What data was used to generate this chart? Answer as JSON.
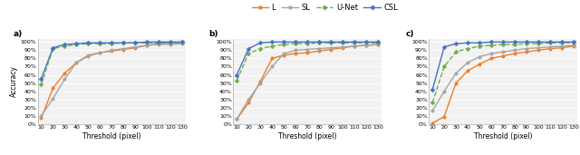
{
  "thresholds": [
    10,
    20,
    30,
    40,
    50,
    60,
    70,
    80,
    90,
    100,
    110,
    120,
    130
  ],
  "panels": [
    {
      "label": "a)",
      "L": [
        0.07,
        0.44,
        0.62,
        0.75,
        0.83,
        0.87,
        0.89,
        0.91,
        0.93,
        0.96,
        0.98,
        0.99,
        1.0
      ],
      "SL": [
        0.1,
        0.31,
        0.55,
        0.75,
        0.84,
        0.87,
        0.9,
        0.92,
        0.94,
        0.96,
        0.97,
        0.97,
        0.98
      ],
      "UNet": [
        0.48,
        0.92,
        0.95,
        0.97,
        0.98,
        0.98,
        0.98,
        0.99,
        0.99,
        0.99,
        0.99,
        0.99,
        0.99
      ],
      "CSL": [
        0.55,
        0.93,
        0.97,
        0.98,
        0.99,
        0.99,
        0.99,
        0.99,
        0.99,
        1.0,
        1.0,
        1.0,
        1.0
      ]
    },
    {
      "label": "b)",
      "L": [
        0.06,
        0.26,
        0.52,
        0.8,
        0.84,
        0.86,
        0.87,
        0.89,
        0.91,
        0.93,
        0.95,
        0.96,
        0.97
      ],
      "SL": [
        0.06,
        0.3,
        0.5,
        0.7,
        0.86,
        0.9,
        0.91,
        0.92,
        0.93,
        0.94,
        0.95,
        0.96,
        0.97
      ],
      "UNet": [
        0.53,
        0.86,
        0.92,
        0.95,
        0.97,
        0.98,
        0.98,
        0.99,
        0.99,
        0.99,
        0.99,
        0.99,
        0.99
      ],
      "CSL": [
        0.6,
        0.92,
        0.99,
        1.0,
        1.0,
        1.0,
        1.0,
        1.0,
        1.0,
        1.0,
        1.0,
        1.0,
        1.0
      ]
    },
    {
      "label": "c)",
      "L": [
        0.01,
        0.09,
        0.5,
        0.65,
        0.73,
        0.8,
        0.83,
        0.86,
        0.88,
        0.9,
        0.92,
        0.93,
        0.95
      ],
      "SL": [
        0.16,
        0.4,
        0.62,
        0.75,
        0.82,
        0.86,
        0.88,
        0.9,
        0.92,
        0.93,
        0.94,
        0.95,
        0.96
      ],
      "UNet": [
        0.26,
        0.7,
        0.88,
        0.92,
        0.95,
        0.96,
        0.97,
        0.97,
        0.98,
        0.98,
        0.99,
        0.99,
        0.99
      ],
      "CSL": [
        0.42,
        0.94,
        0.98,
        0.99,
        0.99,
        1.0,
        1.0,
        1.0,
        1.0,
        1.0,
        1.0,
        1.0,
        1.0
      ]
    }
  ],
  "colors": {
    "L": "#f47b20",
    "SL": "#a5a5a5",
    "UNet": "#70ad47",
    "CSL": "#4472c4"
  },
  "legend_labels": [
    "L",
    "SL",
    "U-Net",
    "CSL"
  ],
  "yticks": [
    0.0,
    0.1,
    0.2,
    0.3,
    0.4,
    0.5,
    0.6,
    0.7,
    0.8,
    0.9,
    1.0
  ],
  "ytick_labels": [
    "0%",
    "10%",
    "20%",
    "30%",
    "40%",
    "50%",
    "60%",
    "70%",
    "80%",
    "90%",
    "100%"
  ],
  "xlabel": "Threshold (pixel)",
  "ylabel": "Accuracy",
  "marker_size": 2.5,
  "line_width": 1.0,
  "background_color": "#f2f2f2"
}
